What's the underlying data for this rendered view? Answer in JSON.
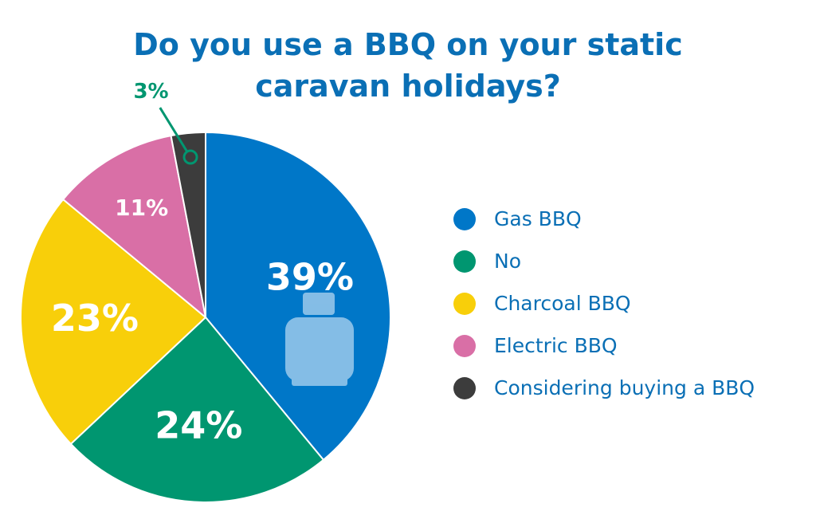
{
  "chart_data": {
    "type": "pie",
    "title": "Do you use a BBQ on your static caravan holidays?",
    "categories": [
      "Gas BBQ",
      "No",
      "Charcoal BBQ",
      "Electric BBQ",
      "Considering buying a BBQ"
    ],
    "values": [
      39,
      24,
      23,
      11,
      3
    ],
    "value_labels": [
      "39%",
      "24%",
      "23%",
      "11%",
      "3%"
    ],
    "colors": [
      "#0077c8",
      "#009670",
      "#f8cf0a",
      "#d96fa6",
      "#3c3c3c"
    ]
  }
}
